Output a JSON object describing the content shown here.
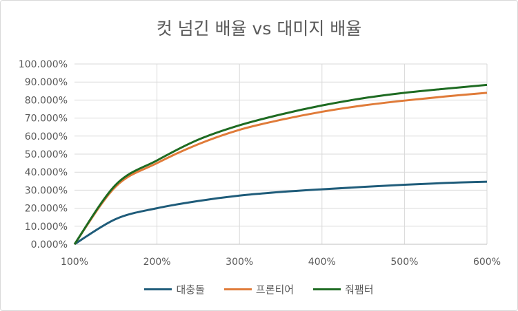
{
  "chart_data": {
    "type": "line",
    "title": "컷 넘긴 배율 vs 대미지 배율",
    "xlabel": "",
    "ylabel": "",
    "xlim": [
      1,
      6
    ],
    "ylim": [
      0,
      1
    ],
    "x_ticks": [
      "100%",
      "200%",
      "300%",
      "400%",
      "500%",
      "600%"
    ],
    "y_ticks": [
      "0.000%",
      "10.000%",
      "20.000%",
      "30.000%",
      "40.000%",
      "50.000%",
      "60.000%",
      "70.000%",
      "80.000%",
      "90.000%",
      "100.000%"
    ],
    "grid": true,
    "legend_position": "bottom",
    "x": [
      1,
      1.5,
      2,
      2.5,
      3,
      3.5,
      4,
      4.5,
      5,
      5.5,
      6
    ],
    "series": [
      {
        "name": "대충돌",
        "color": "#1f5c7a",
        "values": [
          0,
          0.14,
          0.2,
          0.24,
          0.27,
          0.29,
          0.305,
          0.318,
          0.33,
          0.34,
          0.347
        ]
      },
      {
        "name": "프론티어",
        "color": "#e07b39",
        "values": [
          0,
          0.32,
          0.45,
          0.555,
          0.635,
          0.69,
          0.735,
          0.77,
          0.797,
          0.82,
          0.84
        ]
      },
      {
        "name": "줘팸터",
        "color": "#1e6b22",
        "values": [
          0,
          0.33,
          0.465,
          0.58,
          0.66,
          0.72,
          0.77,
          0.81,
          0.84,
          0.863,
          0.884
        ]
      }
    ]
  }
}
